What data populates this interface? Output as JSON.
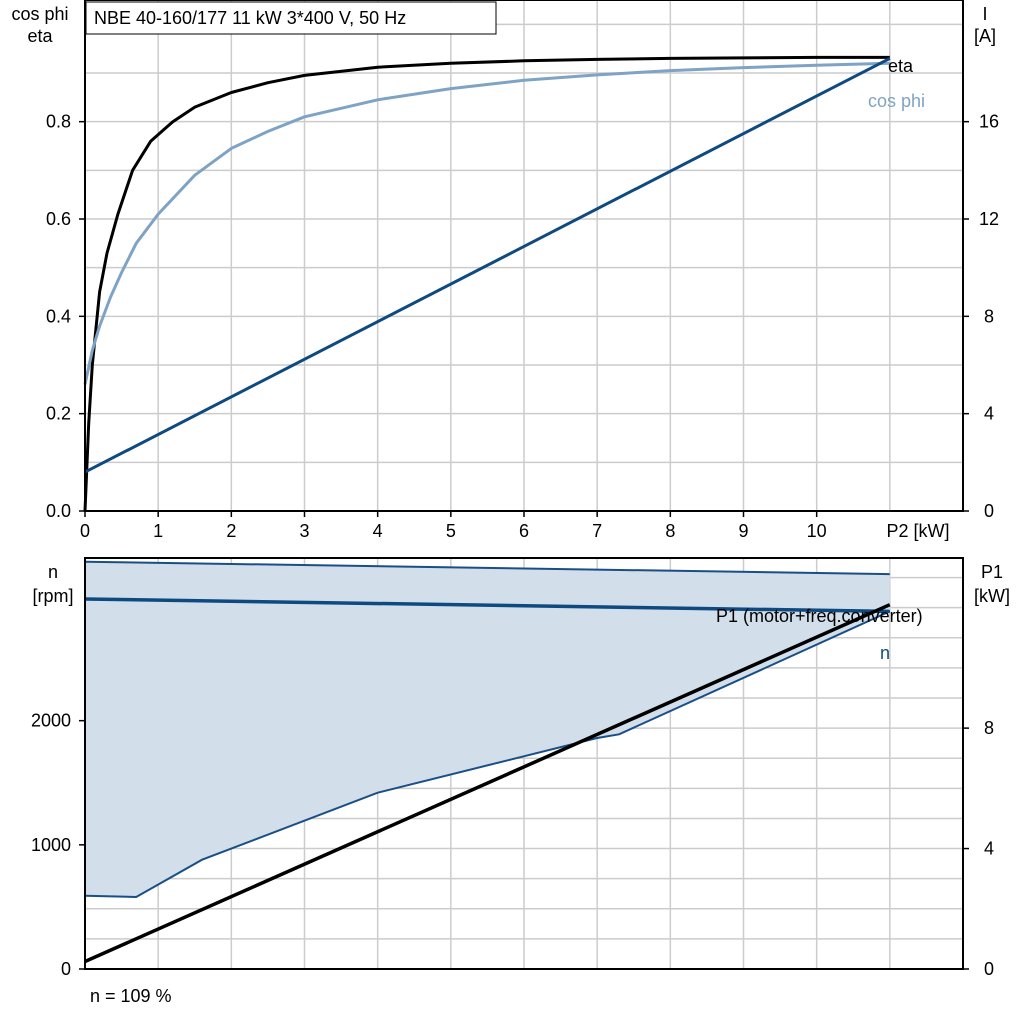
{
  "header": {
    "title_box": "NBE 40-160/177   11 kW   3*400 V, 50 Hz"
  },
  "footer": {
    "speed_note": "n = 109 %"
  },
  "colors": {
    "eta": "#000000",
    "cos_phi": "#7ea3c4",
    "current": "#0e4a80",
    "band_fill": "#d2deea",
    "band_line": "#1a4f86",
    "grid": "#cccccc"
  },
  "chart_data": [
    {
      "type": "line",
      "panel": "top",
      "xlabel": "P2 [kW]",
      "ylabel_left_lines": [
        "cos phi",
        "eta"
      ],
      "ylabel_right_lines": [
        "I",
        "[A]"
      ],
      "x_ticks": [
        "0",
        "1",
        "2",
        "3",
        "4",
        "5",
        "6",
        "7",
        "8",
        "9",
        "10"
      ],
      "y_left_ticks": [
        "0.0",
        "0.2",
        "0.4",
        "0.6",
        "0.8"
      ],
      "y_right_ticks": [
        "0",
        "4",
        "8",
        "12",
        "16"
      ],
      "xlim": [
        0,
        12
      ],
      "ylim_left": [
        0,
        1.05
      ],
      "ylim_right": [
        0,
        21
      ],
      "grid": true,
      "series": [
        {
          "name": "eta",
          "axis": "left",
          "x": [
            0,
            0.05,
            0.1,
            0.2,
            0.3,
            0.45,
            0.65,
            0.9,
            1.2,
            1.5,
            2,
            2.5,
            3,
            4,
            5,
            6,
            7,
            8,
            9,
            10,
            11
          ],
          "y": [
            0.0,
            0.18,
            0.3,
            0.45,
            0.53,
            0.61,
            0.7,
            0.76,
            0.8,
            0.83,
            0.86,
            0.88,
            0.895,
            0.912,
            0.92,
            0.925,
            0.928,
            0.93,
            0.931,
            0.932,
            0.932
          ]
        },
        {
          "name": "cos phi",
          "axis": "left",
          "x": [
            0,
            0.1,
            0.2,
            0.35,
            0.5,
            0.7,
            1,
            1.5,
            2,
            2.5,
            3,
            4,
            5,
            6,
            7,
            8,
            9,
            10,
            11
          ],
          "y": [
            0.26,
            0.33,
            0.38,
            0.44,
            0.49,
            0.55,
            0.61,
            0.69,
            0.745,
            0.78,
            0.81,
            0.845,
            0.868,
            0.885,
            0.896,
            0.905,
            0.911,
            0.916,
            0.92
          ]
        },
        {
          "name": "",
          "axis": "right",
          "x": [
            0,
            11
          ],
          "y": [
            1.6,
            18.6
          ]
        }
      ],
      "annotations": [
        "eta",
        "cos phi"
      ]
    },
    {
      "type": "area",
      "panel": "bottom",
      "ylabel_left_lines": [
        "n",
        "[rpm]"
      ],
      "ylabel_right_lines": [
        "P1",
        "[kW]"
      ],
      "y_left_ticks": [
        "0",
        "1000",
        "2000"
      ],
      "y_right_ticks": [
        "0",
        "4",
        "8"
      ],
      "xlim": [
        0,
        12
      ],
      "ylim_left": [
        0,
        3310
      ],
      "ylim_right": [
        0,
        13.65
      ],
      "grid": true,
      "band_upper": {
        "x": [
          0,
          11
        ],
        "y": [
          3280,
          3180
        ]
      },
      "band_lower": {
        "x": [
          0,
          0.7,
          1.6,
          4,
          7,
          7.3,
          11
        ],
        "y": [
          590,
          580,
          880,
          1420,
          1860,
          1890,
          2880
        ]
      },
      "series": [
        {
          "name": "n",
          "axis": "left",
          "x": [
            0,
            11
          ],
          "y": [
            2980,
            2880
          ]
        },
        {
          "name": "P1 (motor+freq.converter)",
          "axis": "right",
          "x": [
            0,
            11
          ],
          "y": [
            0.25,
            12.1
          ]
        }
      ],
      "annotations": [
        "P1 (motor+freq.converter)",
        "n"
      ]
    }
  ]
}
